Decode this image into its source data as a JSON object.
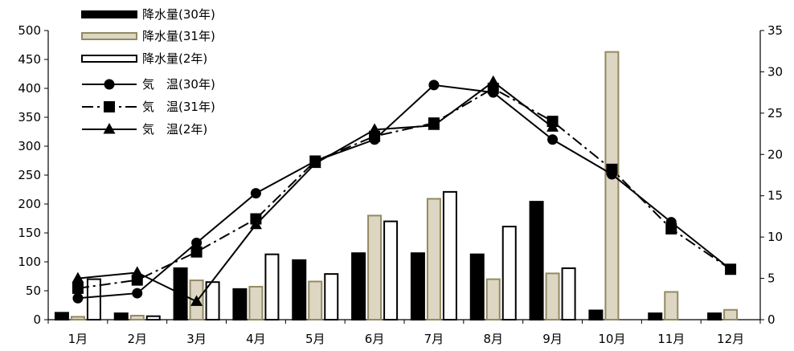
{
  "chart_data": {
    "type": "bar",
    "categories": [
      "1月",
      "2月",
      "3月",
      "4月",
      "5月",
      "6月",
      "7月",
      "8月",
      "9月",
      "10月",
      "11月",
      "12月"
    ],
    "y_left": {
      "min": 0,
      "max": 500,
      "ticks": [
        "0",
        "50",
        "100",
        "150",
        "200",
        "250",
        "300",
        "350",
        "400",
        "450",
        "500"
      ]
    },
    "y_right": {
      "min": 0,
      "max": 35,
      "ticks": [
        "0",
        "5",
        "10",
        "15",
        "20",
        "25",
        "30",
        "35"
      ]
    },
    "grid": false,
    "legend_position": "top-left",
    "bar_series": [
      {
        "name": "降水量(30年)",
        "fill": "#000000",
        "stroke": "#000000",
        "values": [
          12,
          11,
          89,
          53,
          103,
          115,
          115,
          113,
          204,
          16,
          11,
          11
        ]
      },
      {
        "name": "降水量(31年)",
        "fill": "#dcd6c3",
        "stroke": "#938a61",
        "values": [
          5,
          7,
          68,
          57,
          66,
          180,
          209,
          70,
          80,
          463,
          48,
          17
        ]
      },
      {
        "name": "降水量(2年)",
        "fill": "#ffffff",
        "stroke": "#000000",
        "values": [
          70,
          6,
          65,
          113,
          79,
          170,
          221,
          161,
          89,
          null,
          null,
          null
        ]
      }
    ],
    "line_series": [
      {
        "name": "気　温(30年)",
        "marker": "circle",
        "dash": "",
        "values": [
          2.6,
          3.2,
          9.3,
          15.3,
          19.2,
          21.8,
          28.4,
          27.5,
          21.8,
          17.6,
          11.8,
          6.1
        ]
      },
      {
        "name": "気　温(31年)",
        "marker": "square",
        "dash": "14,5,3,5",
        "values": [
          3.8,
          4.8,
          8.2,
          12.2,
          19.2,
          22.2,
          23.8,
          28.0,
          24.0,
          18.2,
          11.0,
          6.1
        ]
      },
      {
        "name": "気　温(2年)",
        "marker": "triangle",
        "dash": "",
        "values": [
          5.0,
          5.7,
          2.2,
          11.5,
          18.9,
          23.0,
          23.5,
          28.8,
          23.3,
          null,
          null,
          null
        ]
      }
    ]
  }
}
